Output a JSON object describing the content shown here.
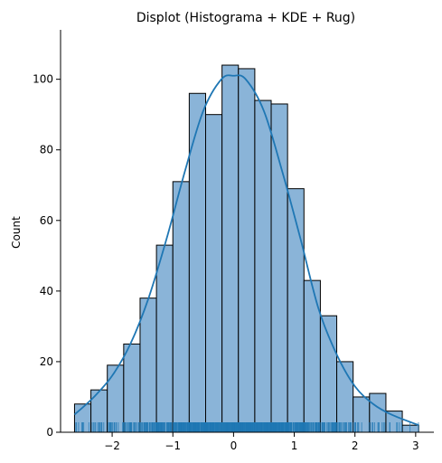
{
  "chart_data": {
    "type": "bar",
    "title": "Displot (Histograma + KDE + Rug)",
    "xlabel": "",
    "ylabel": "Count",
    "xlim": [
      -2.85,
      3.3
    ],
    "ylim": [
      0,
      114
    ],
    "xticks": [
      -2,
      -1,
      0,
      1,
      2,
      3
    ],
    "yticks": [
      0,
      20,
      40,
      60,
      80,
      100
    ],
    "grid": false,
    "bin_edges": [
      -2.62,
      -2.35,
      -2.08,
      -1.81,
      -1.54,
      -1.27,
      -1.0,
      -0.73,
      -0.46,
      -0.19,
      0.08,
      0.35,
      0.62,
      0.89,
      1.16,
      1.43,
      1.7,
      1.97,
      2.24,
      2.51,
      2.78,
      3.05
    ],
    "counts": [
      8,
      12,
      19,
      25,
      38,
      53,
      71,
      96,
      90,
      104,
      103,
      94,
      93,
      69,
      43,
      33,
      20,
      10,
      11,
      6,
      2
    ],
    "kde": {
      "x": [
        -2.62,
        -2.3,
        -2.0,
        -1.7,
        -1.4,
        -1.1,
        -0.8,
        -0.5,
        -0.2,
        0.0,
        0.2,
        0.5,
        0.8,
        1.1,
        1.4,
        1.7,
        2.0,
        2.3,
        2.6,
        3.05
      ],
      "y": [
        5,
        10,
        16,
        25,
        38,
        55,
        74,
        91,
        100,
        101,
        100,
        91,
        74,
        55,
        35,
        22,
        13,
        8,
        5,
        2
      ]
    },
    "colors": {
      "bar_fill": "#8ab4d8",
      "bar_edge": "#000000",
      "kde_line": "#1f77b4",
      "rug": "#1f77b4"
    }
  }
}
